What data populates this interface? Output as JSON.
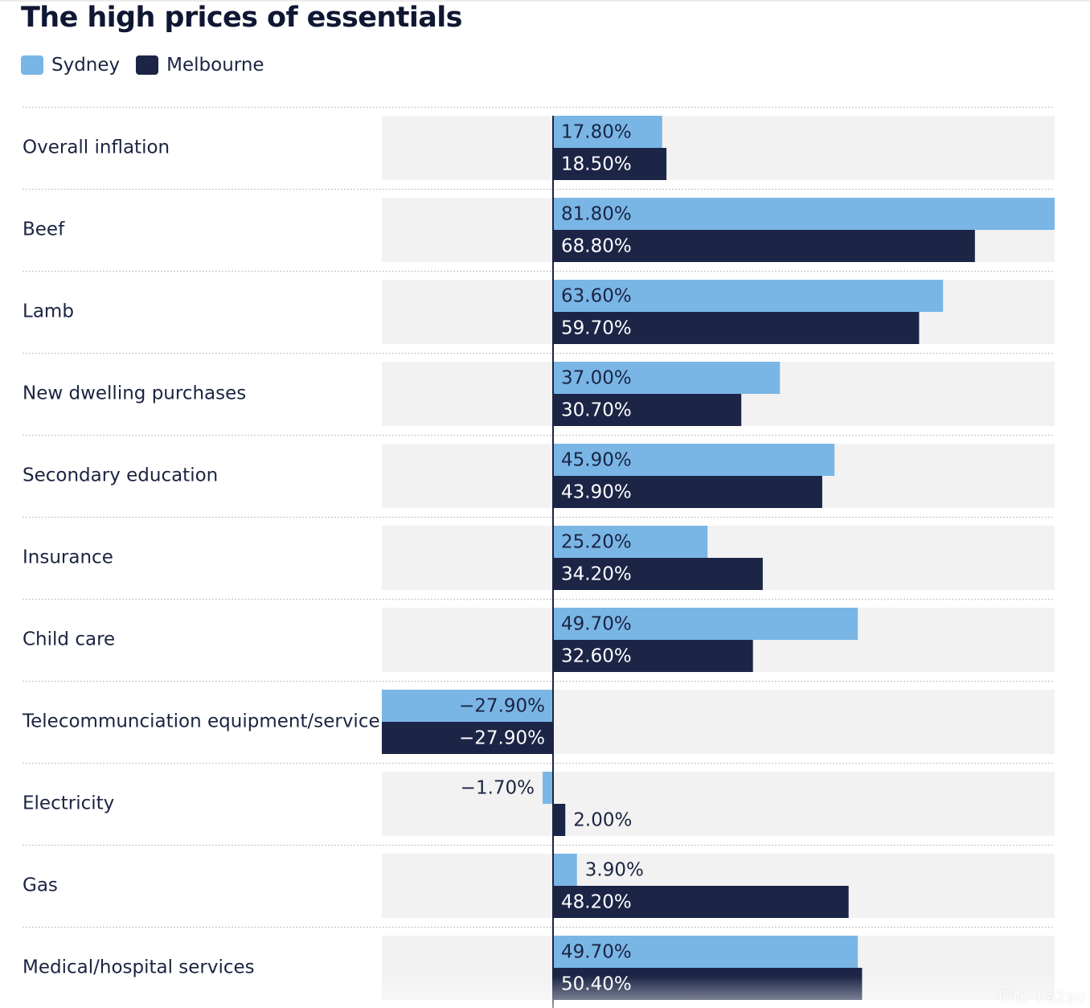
{
  "chart_data": {
    "type": "bar",
    "orientation": "horizontal",
    "title": "The high prices of essentials",
    "categories": [
      "Overall inflation",
      "Beef",
      "Lamb",
      "New dwelling purchases",
      "Secondary education",
      "Insurance",
      "Child care",
      "Telecommunciation equipment/service",
      "Electricity",
      "Gas",
      "Medical/hospital services"
    ],
    "series": [
      {
        "name": "Sydney",
        "color": "#79b6e6",
        "values": [
          17.8,
          81.8,
          63.6,
          37.0,
          45.9,
          25.2,
          49.7,
          -27.9,
          -1.7,
          3.9,
          49.7
        ],
        "labels": [
          "17.80%",
          "81.80%",
          "63.60%",
          "37.00%",
          "45.90%",
          "25.20%",
          "49.70%",
          "−27.90%",
          "−1.70%",
          "3.90%",
          "49.70%"
        ]
      },
      {
        "name": "Melbourne",
        "color": "#1c2546",
        "values": [
          18.5,
          68.8,
          59.7,
          30.7,
          43.9,
          34.2,
          32.6,
          -27.9,
          2.0,
          48.2,
          50.4
        ],
        "labels": [
          "18.50%",
          "68.80%",
          "59.70%",
          "30.70%",
          "43.90%",
          "34.20%",
          "32.60%",
          "−27.90%",
          "2.00%",
          "48.20%",
          "50.40%"
        ]
      }
    ],
    "xlim": [
      -27.9,
      81.8
    ],
    "legend_position": "top-left",
    "grid": false
  },
  "watermark": "Chi na2au"
}
